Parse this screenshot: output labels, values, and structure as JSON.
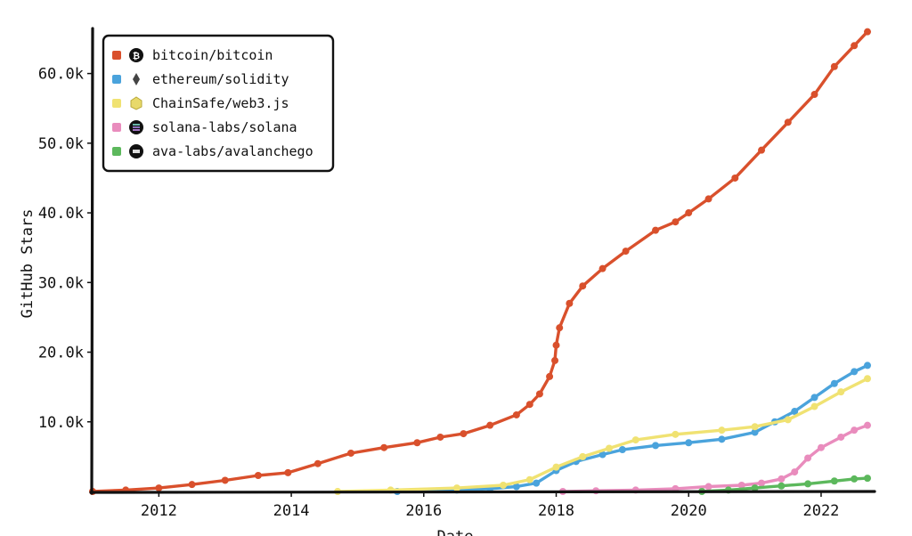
{
  "chart_data": {
    "type": "line",
    "xlabel": "Date",
    "ylabel": "GitHub Stars",
    "xlim": [
      2011.0,
      2022.7
    ],
    "ylim": [
      0,
      68000
    ],
    "x_ticks": [
      {
        "value": 2012,
        "label": "2012"
      },
      {
        "value": 2014,
        "label": "2014"
      },
      {
        "value": 2016,
        "label": "2016"
      },
      {
        "value": 2018,
        "label": "2018"
      },
      {
        "value": 2020,
        "label": "2020"
      },
      {
        "value": 2022,
        "label": "2022"
      }
    ],
    "y_ticks": [
      {
        "value": 10000,
        "label": "10.0k"
      },
      {
        "value": 20000,
        "label": "20.0k"
      },
      {
        "value": 30000,
        "label": "30.0k"
      },
      {
        "value": 40000,
        "label": "40.0k"
      },
      {
        "value": 50000,
        "label": "50.0k"
      },
      {
        "value": 60000,
        "label": "60.0k"
      }
    ],
    "legend_position": "top-left",
    "series": [
      {
        "name": "bitcoin/bitcoin",
        "color": "#d9502c",
        "icon": "bitcoin-icon",
        "points": [
          [
            2011.0,
            0
          ],
          [
            2011.5,
            200
          ],
          [
            2012.0,
            500
          ],
          [
            2012.5,
            1000
          ],
          [
            2013.0,
            1600
          ],
          [
            2013.5,
            2300
          ],
          [
            2013.95,
            2700
          ],
          [
            2014.4,
            4000
          ],
          [
            2014.9,
            5500
          ],
          [
            2015.4,
            6300
          ],
          [
            2015.9,
            7000
          ],
          [
            2016.25,
            7800
          ],
          [
            2016.6,
            8300
          ],
          [
            2017.0,
            9500
          ],
          [
            2017.4,
            11000
          ],
          [
            2017.6,
            12500
          ],
          [
            2017.75,
            14000
          ],
          [
            2017.9,
            16500
          ],
          [
            2017.98,
            18800
          ],
          [
            2018.0,
            21000
          ],
          [
            2018.05,
            23500
          ],
          [
            2018.2,
            27000
          ],
          [
            2018.4,
            29500
          ],
          [
            2018.7,
            32000
          ],
          [
            2019.05,
            34500
          ],
          [
            2019.5,
            37500
          ],
          [
            2019.8,
            38700
          ],
          [
            2020.0,
            40000
          ],
          [
            2020.3,
            42000
          ],
          [
            2020.7,
            45000
          ],
          [
            2021.1,
            49000
          ],
          [
            2021.5,
            53000
          ],
          [
            2021.9,
            57000
          ],
          [
            2022.2,
            61000
          ],
          [
            2022.5,
            64000
          ],
          [
            2022.7,
            66000
          ]
        ]
      },
      {
        "name": "ethereum/solidity",
        "color": "#4aa3dc",
        "icon": "ethereum-icon",
        "points": [
          [
            2015.6,
            0
          ],
          [
            2016.5,
            200
          ],
          [
            2017.0,
            400
          ],
          [
            2017.4,
            700
          ],
          [
            2017.7,
            1200
          ],
          [
            2018.0,
            3000
          ],
          [
            2018.3,
            4300
          ],
          [
            2018.7,
            5300
          ],
          [
            2019.0,
            6000
          ],
          [
            2019.5,
            6600
          ],
          [
            2020.0,
            7000
          ],
          [
            2020.5,
            7500
          ],
          [
            2021.0,
            8500
          ],
          [
            2021.3,
            10000
          ],
          [
            2021.6,
            11500
          ],
          [
            2021.9,
            13500
          ],
          [
            2022.2,
            15500
          ],
          [
            2022.5,
            17200
          ],
          [
            2022.7,
            18100
          ]
        ]
      },
      {
        "name": "ChainSafe/web3.js",
        "color": "#f0e272",
        "icon": "web3js-icon",
        "points": [
          [
            2014.7,
            0
          ],
          [
            2015.5,
            200
          ],
          [
            2016.5,
            500
          ],
          [
            2017.2,
            900
          ],
          [
            2017.6,
            1700
          ],
          [
            2018.0,
            3500
          ],
          [
            2018.4,
            5000
          ],
          [
            2018.8,
            6200
          ],
          [
            2019.2,
            7400
          ],
          [
            2019.8,
            8200
          ],
          [
            2020.5,
            8800
          ],
          [
            2021.0,
            9300
          ],
          [
            2021.5,
            10300
          ],
          [
            2021.9,
            12200
          ],
          [
            2022.3,
            14300
          ],
          [
            2022.7,
            16200
          ]
        ]
      },
      {
        "name": "solana-labs/solana",
        "color": "#e98cbd",
        "icon": "solana-icon",
        "points": [
          [
            2018.1,
            0
          ],
          [
            2018.6,
            100
          ],
          [
            2019.2,
            200
          ],
          [
            2019.8,
            400
          ],
          [
            2020.3,
            700
          ],
          [
            2020.8,
            900
          ],
          [
            2021.1,
            1200
          ],
          [
            2021.4,
            1800
          ],
          [
            2021.6,
            2800
          ],
          [
            2021.8,
            4800
          ],
          [
            2022.0,
            6300
          ],
          [
            2022.3,
            7800
          ],
          [
            2022.5,
            8800
          ],
          [
            2022.7,
            9500
          ]
        ]
      },
      {
        "name": "ava-labs/avalanchego",
        "color": "#5cb85c",
        "icon": "avalanche-icon",
        "points": [
          [
            2020.2,
            0
          ],
          [
            2020.6,
            200
          ],
          [
            2021.0,
            500
          ],
          [
            2021.4,
            800
          ],
          [
            2021.8,
            1100
          ],
          [
            2022.2,
            1500
          ],
          [
            2022.5,
            1800
          ],
          [
            2022.7,
            1900
          ]
        ]
      }
    ]
  }
}
